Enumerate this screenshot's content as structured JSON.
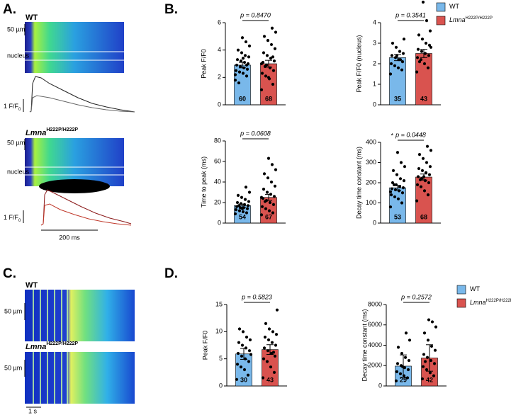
{
  "panel_labels": [
    "A.",
    "B.",
    "C.",
    "D."
  ],
  "legend": {
    "items": [
      {
        "name": "WT",
        "color": "#79b8ea"
      },
      {
        "name": "Lmna",
        "superscript": "H222P/H222P",
        "color": "#d9534f"
      }
    ]
  },
  "scale_50um": "50 µm",
  "nucleus": "nucleus",
  "fscale": {
    "text": "1 F/F",
    "sub": "0"
  },
  "time_200": "200 ms",
  "time_1s": "1 s",
  "chart_data": [
    {
      "type": "bar",
      "ylabel": "Peak F/F0",
      "ylim": [
        0,
        6
      ],
      "yticks": [
        0,
        2,
        4,
        6
      ],
      "values": [
        2.9,
        3.0
      ],
      "errors": [
        0.2,
        0.25
      ],
      "n": [
        60,
        68
      ],
      "p_label": "p = 0.8470",
      "points": [
        [
          1.8,
          2.1,
          2.3,
          2.4,
          2.5,
          2.6,
          2.7,
          2.8,
          2.9,
          3.0,
          3.1,
          3.2,
          3.3,
          3.5,
          3.6,
          3.8,
          4.0,
          4.3,
          4.6,
          4.9,
          1.6,
          2.2,
          2.9,
          3.4
        ],
        [
          1.1,
          1.5,
          1.9,
          2.1,
          2.3,
          2.5,
          2.7,
          2.9,
          3.1,
          3.2,
          3.4,
          3.6,
          3.8,
          4.1,
          4.4,
          4.7,
          5.0,
          5.3,
          5.6,
          2.0,
          2.8,
          3.0,
          3.5
        ]
      ]
    },
    {
      "type": "bar",
      "ylabel": "Peak F/F0  (nucleus)",
      "ylim": [
        0,
        4
      ],
      "yticks": [
        0,
        1,
        2,
        3,
        4
      ],
      "values": [
        2.3,
        2.5
      ],
      "errors": [
        0.15,
        0.2
      ],
      "n": [
        35,
        43
      ],
      "p_label": "p = 0.3541",
      "points": [
        [
          1.5,
          1.7,
          1.8,
          1.9,
          2.0,
          2.1,
          2.2,
          2.3,
          2.4,
          2.5,
          2.6,
          2.8,
          3.0,
          3.2,
          2.2,
          2.4
        ],
        [
          1.6,
          1.8,
          2.0,
          2.2,
          2.3,
          2.4,
          2.5,
          2.6,
          2.7,
          2.9,
          3.0,
          3.2,
          3.4,
          3.6,
          4.1,
          5.0,
          2.1,
          2.8
        ]
      ]
    },
    {
      "type": "bar",
      "ylabel": "Time to peak (ms)",
      "ylim": [
        0,
        80
      ],
      "yticks": [
        0,
        20,
        40,
        60,
        80
      ],
      "values": [
        17,
        25
      ],
      "errors": [
        1.5,
        3
      ],
      "n": [
        54,
        67
      ],
      "p_label": "p = 0.0608",
      "points": [
        [
          9,
          10,
          11,
          12,
          13,
          14,
          15,
          15,
          16,
          17,
          18,
          19,
          20,
          21,
          23,
          25,
          27,
          30,
          35,
          14,
          17
        ],
        [
          8,
          10,
          12,
          14,
          16,
          18,
          20,
          22,
          24,
          26,
          28,
          30,
          33,
          36,
          40,
          44,
          48,
          52,
          57,
          63,
          21,
          25
        ]
      ]
    },
    {
      "type": "bar",
      "ylabel": "Decay time constant (ms)",
      "ylim": [
        0,
        400
      ],
      "yticks": [
        0,
        100,
        200,
        300,
        400
      ],
      "values": [
        175,
        228
      ],
      "errors": [
        12,
        15
      ],
      "n": [
        53,
        68
      ],
      "p_label": "p = 0.0448",
      "marker": "*",
      "points": [
        [
          80,
          100,
          120,
          130,
          140,
          150,
          160,
          165,
          170,
          175,
          180,
          190,
          200,
          210,
          220,
          240,
          260,
          280,
          300,
          350,
          190,
          155
        ],
        [
          110,
          140,
          160,
          180,
          190,
          200,
          210,
          220,
          230,
          240,
          250,
          260,
          270,
          280,
          300,
          320,
          340,
          360,
          380,
          230,
          215
        ]
      ]
    },
    {
      "type": "bar",
      "ylabel": "Peak F/F0",
      "ylim": [
        0,
        15
      ],
      "yticks": [
        0,
        5,
        10,
        15
      ],
      "values": [
        5.9,
        6.7
      ],
      "errors": [
        1.0,
        0.9
      ],
      "n": [
        30,
        43
      ],
      "p_label": "p = 0.5823",
      "points": [
        [
          1.2,
          2,
          3,
          3.5,
          4,
          4.5,
          5,
          5.5,
          6,
          6.5,
          7,
          7.5,
          8,
          8.5,
          9,
          10,
          10.5,
          5.8
        ],
        [
          1.5,
          2.5,
          3.5,
          4.5,
          5,
          5.5,
          6,
          6.5,
          7,
          7.5,
          8,
          8.5,
          9,
          9.5,
          10,
          10.5,
          11.5,
          14,
          6.2
        ]
      ]
    },
    {
      "type": "bar",
      "ylabel": "Decay time constant (ms)",
      "ylim": [
        0,
        8000
      ],
      "yticks": [
        0,
        2000,
        4000,
        6000,
        8000
      ],
      "values": [
        1950,
        2750
      ],
      "errors": [
        1100,
        1300
      ],
      "n": [
        29,
        42
      ],
      "p_label": "p = 0.2572",
      "points": [
        [
          500,
          800,
          1000,
          1200,
          1400,
          1600,
          1800,
          2000,
          2200,
          2500,
          2800,
          3200,
          3800,
          4500,
          5200,
          1900
        ],
        [
          700,
          1000,
          1300,
          1600,
          1900,
          2200,
          2500,
          2800,
          3100,
          3500,
          3900,
          4500,
          5200,
          5800,
          6300,
          6500,
          2400
        ]
      ]
    }
  ]
}
